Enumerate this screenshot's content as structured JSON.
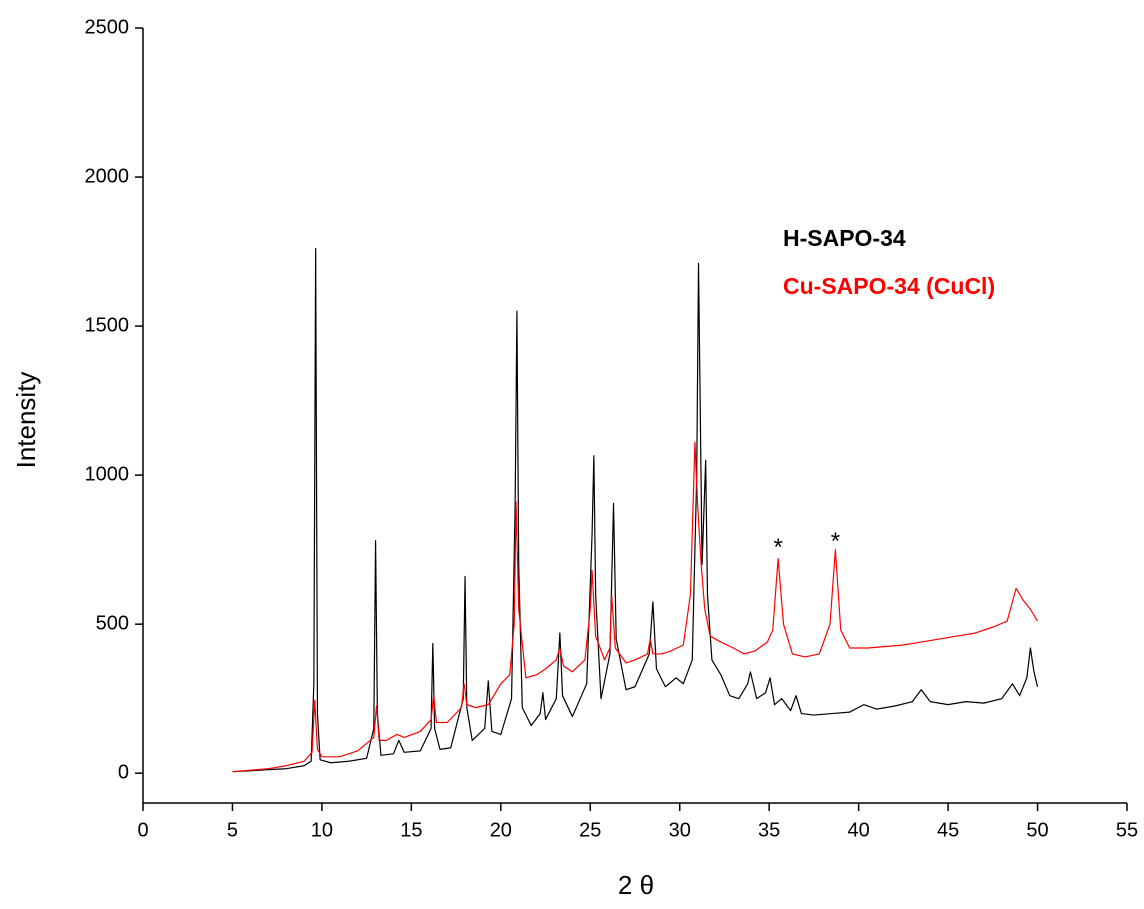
{
  "chart_data": {
    "type": "line",
    "x_label": "2 θ",
    "y_label": "Intensity",
    "xlim": [
      0,
      55
    ],
    "ylim": [
      -100,
      2500
    ],
    "xticks": [
      0,
      5,
      10,
      15,
      20,
      25,
      30,
      35,
      40,
      45,
      50,
      55
    ],
    "yticks": [
      0,
      500,
      1000,
      1500,
      2000,
      2500
    ],
    "grid": false,
    "legend": "right",
    "series": [
      {
        "name": "H-SAPO-34",
        "color": "#000000",
        "x": [
          5,
          6,
          7,
          8,
          9,
          9.4,
          9.55,
          9.65,
          9.75,
          9.9,
          10.5,
          11.5,
          12.5,
          12.9,
          13.0,
          13.1,
          13.3,
          14,
          14.3,
          14.6,
          15.5,
          16.1,
          16.2,
          16.3,
          16.6,
          17.2,
          17.9,
          18.0,
          18.1,
          18.4,
          19.1,
          19.3,
          19.5,
          20,
          20.6,
          20.8,
          20.9,
          21.0,
          21.2,
          21.7,
          22.2,
          22.35,
          22.5,
          23.1,
          23.3,
          23.45,
          24,
          24.8,
          25.1,
          25.2,
          25.3,
          25.6,
          26.1,
          26.3,
          26.45,
          27,
          27.5,
          28.3,
          28.5,
          28.7,
          29.2,
          29.8,
          30.2,
          30.7,
          30.95,
          31.05,
          31.25,
          31.45,
          31.55,
          31.8,
          32.3,
          32.8,
          33.3,
          33.8,
          33.95,
          34.3,
          34.8,
          35.05,
          35.3,
          35.7,
          36.2,
          36.5,
          36.8,
          37.5,
          38.5,
          39.5,
          40.3,
          41,
          42,
          43,
          43.5,
          44,
          45,
          46,
          47,
          48,
          48.6,
          49,
          49.4,
          49.6,
          49.8,
          50
        ],
        "values": [
          5,
          8,
          12,
          15,
          25,
          40,
          300,
          1760,
          200,
          45,
          35,
          40,
          50,
          150,
          780,
          200,
          60,
          65,
          110,
          70,
          75,
          150,
          435,
          150,
          80,
          85,
          250,
          660,
          220,
          110,
          150,
          310,
          140,
          130,
          250,
          900,
          1550,
          700,
          220,
          160,
          200,
          270,
          180,
          250,
          470,
          260,
          190,
          300,
          800,
          1065,
          600,
          250,
          400,
          905,
          450,
          280,
          290,
          400,
          575,
          350,
          290,
          320,
          300,
          380,
          1000,
          1710,
          700,
          1050,
          600,
          380,
          330,
          260,
          250,
          300,
          340,
          250,
          270,
          320,
          230,
          250,
          210,
          260,
          200,
          195,
          200,
          205,
          230,
          215,
          225,
          240,
          280,
          240,
          230,
          240,
          235,
          250,
          300,
          260,
          320,
          420,
          340,
          290
        ]
      },
      {
        "name": "Cu-SAPO-34 (CuCl)",
        "color": "#ff0000",
        "x": [
          5,
          6,
          7,
          8,
          9,
          9.45,
          9.6,
          9.75,
          10,
          11,
          12,
          12.9,
          13.05,
          13.2,
          13.6,
          14.2,
          14.6,
          15.5,
          16.1,
          16.25,
          16.4,
          17,
          17.8,
          17.95,
          18.1,
          18.6,
          19.3,
          20,
          20.5,
          20.75,
          20.85,
          21.0,
          21.4,
          22,
          22.5,
          23.1,
          23.3,
          23.5,
          24,
          24.7,
          25.0,
          25.1,
          25.3,
          25.8,
          26.1,
          26.2,
          26.4,
          27,
          27.5,
          28.2,
          28.35,
          28.5,
          29,
          29.5,
          30.2,
          30.6,
          30.85,
          31.0,
          31.2,
          31.4,
          31.7,
          32.3,
          33,
          33.6,
          34.2,
          34.9,
          35.2,
          35.5,
          35.8,
          36.3,
          37,
          37.8,
          38.4,
          38.7,
          39.0,
          39.5,
          40.5,
          41.5,
          42.5,
          43.5,
          44.5,
          45.5,
          46.5,
          47.5,
          48.3,
          48.8,
          49.2,
          49.6,
          50
        ],
        "values": [
          5,
          10,
          15,
          25,
          40,
          70,
          245,
          80,
          55,
          55,
          75,
          120,
          225,
          110,
          110,
          130,
          120,
          140,
          180,
          260,
          170,
          170,
          220,
          300,
          230,
          220,
          230,
          300,
          330,
          500,
          910,
          550,
          320,
          330,
          350,
          380,
          420,
          360,
          340,
          380,
          550,
          680,
          460,
          380,
          420,
          595,
          420,
          370,
          380,
          400,
          450,
          400,
          400,
          410,
          430,
          600,
          1110,
          900,
          700,
          550,
          460,
          440,
          420,
          400,
          410,
          440,
          480,
          720,
          500,
          400,
          390,
          400,
          500,
          750,
          480,
          420,
          420,
          425,
          430,
          440,
          450,
          460,
          470,
          490,
          510,
          620,
          580,
          550,
          510
        ]
      }
    ],
    "annotations": [
      {
        "text": "*",
        "x": 35.5,
        "y": 780
      },
      {
        "text": "*",
        "x": 38.7,
        "y": 800
      }
    ]
  }
}
